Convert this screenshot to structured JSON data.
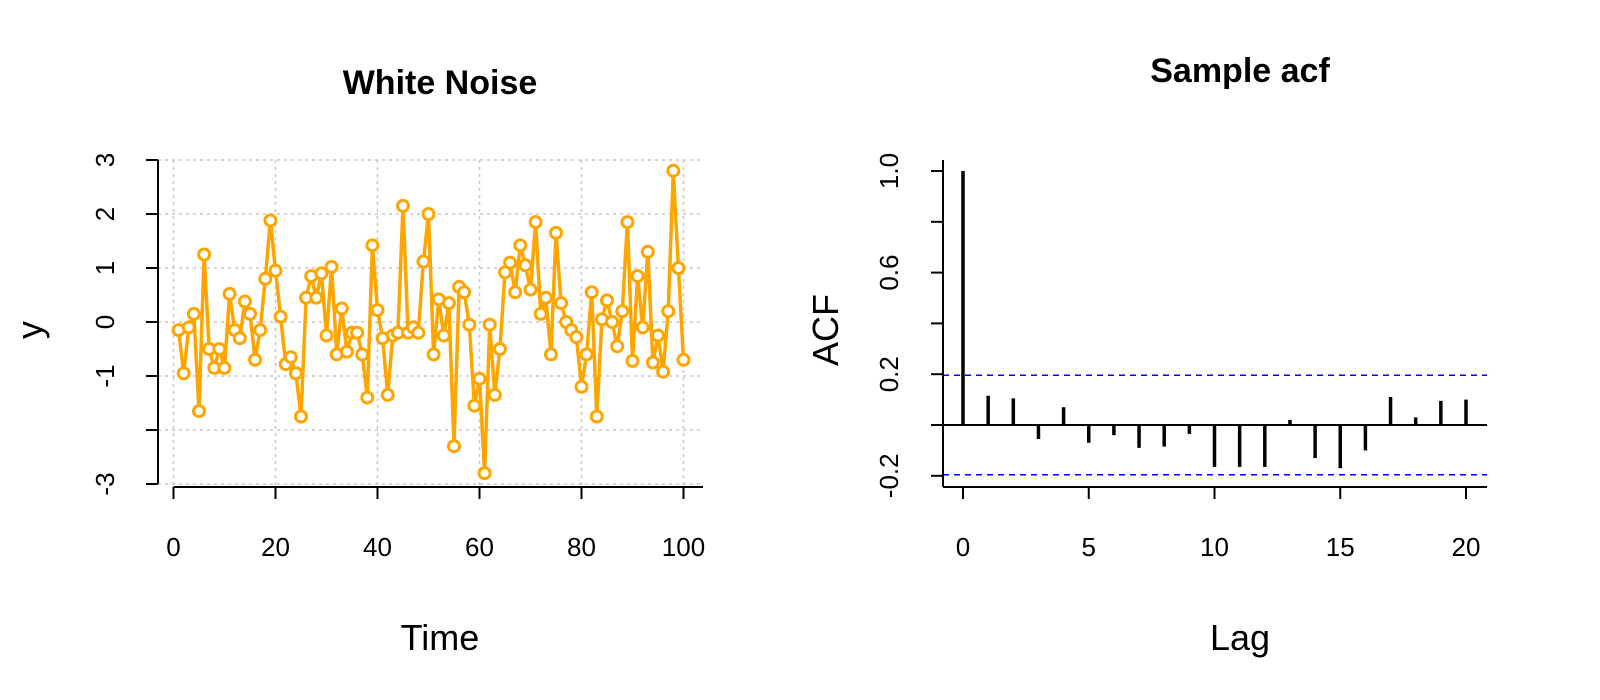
{
  "chart_data": [
    {
      "type": "line",
      "title": "White Noise",
      "xlabel": "Time",
      "ylabel": "y",
      "xlim": [
        0,
        100
      ],
      "ylim": [
        -3,
        3
      ],
      "x_ticks": [
        0,
        20,
        40,
        60,
        80,
        100
      ],
      "y_ticks": [
        -3,
        -2,
        -1,
        0,
        1,
        2,
        3
      ],
      "y_tick_labels": [
        "-3",
        "",
        "-1",
        "0",
        "1",
        "2",
        "3"
      ],
      "grid": true,
      "color": "#FFA500",
      "marker": "circle",
      "series": [
        {
          "values": [
            -0.15,
            -0.95,
            -0.1,
            0.15,
            -1.65,
            1.25,
            -0.5,
            -0.85,
            -0.5,
            -0.85,
            0.52,
            -0.15,
            -0.3,
            0.38,
            0.15,
            -0.7,
            -0.15,
            0.8,
            1.88,
            0.95,
            0.1,
            -0.78,
            -0.65,
            -0.95,
            -1.75,
            0.45,
            0.85,
            0.45,
            0.9,
            -0.25,
            1.02,
            -0.6,
            0.25,
            -0.55,
            -0.2,
            -0.2,
            -0.6,
            -1.4,
            1.42,
            0.22,
            -0.3,
            -1.35,
            -0.25,
            -0.2,
            2.15,
            -0.2,
            -0.1,
            -0.2,
            1.12,
            2.0,
            -0.6,
            0.42,
            -0.25,
            0.35,
            -2.3,
            0.65,
            0.55,
            -0.05,
            -1.55,
            -1.05,
            -2.8,
            -0.05,
            -1.35,
            -0.5,
            0.92,
            1.1,
            0.55,
            1.42,
            1.05,
            0.6,
            1.85,
            0.15,
            0.45,
            -0.6,
            1.65,
            0.35,
            0.0,
            -0.15,
            -0.28,
            -1.2,
            -0.6,
            0.55,
            -1.75,
            0.05,
            0.4,
            0.0,
            -0.45,
            0.2,
            1.85,
            -0.72,
            0.85,
            -0.1,
            1.3,
            -0.75,
            -0.25,
            -0.92,
            0.2,
            2.8,
            1.0,
            -0.7
          ]
        }
      ]
    },
    {
      "type": "bar",
      "title": "Sample acf",
      "xlabel": "Lag",
      "ylabel": "ACF",
      "xlim": [
        0,
        20
      ],
      "ylim": [
        -0.25,
        1.02
      ],
      "x_ticks": [
        0,
        5,
        10,
        15,
        20
      ],
      "y_ticks": [
        -0.2,
        0.0,
        0.2,
        0.4,
        0.6,
        0.8,
        1.0
      ],
      "y_tick_labels": [
        "-0.2",
        "",
        "0.2",
        "",
        "0.6",
        "",
        "1.0"
      ],
      "confidence_band": 0.196,
      "band_color": "#0000FF",
      "lags": [
        0,
        1,
        2,
        3,
        4,
        5,
        6,
        7,
        8,
        9,
        10,
        11,
        12,
        13,
        14,
        15,
        16,
        17,
        18,
        19,
        20
      ],
      "values": [
        1.0,
        0.115,
        0.105,
        -0.055,
        0.07,
        -0.07,
        -0.04,
        -0.09,
        -0.085,
        -0.035,
        -0.165,
        -0.165,
        -0.165,
        0.02,
        -0.13,
        -0.17,
        -0.1,
        0.11,
        0.03,
        0.095,
        0.1
      ]
    }
  ]
}
